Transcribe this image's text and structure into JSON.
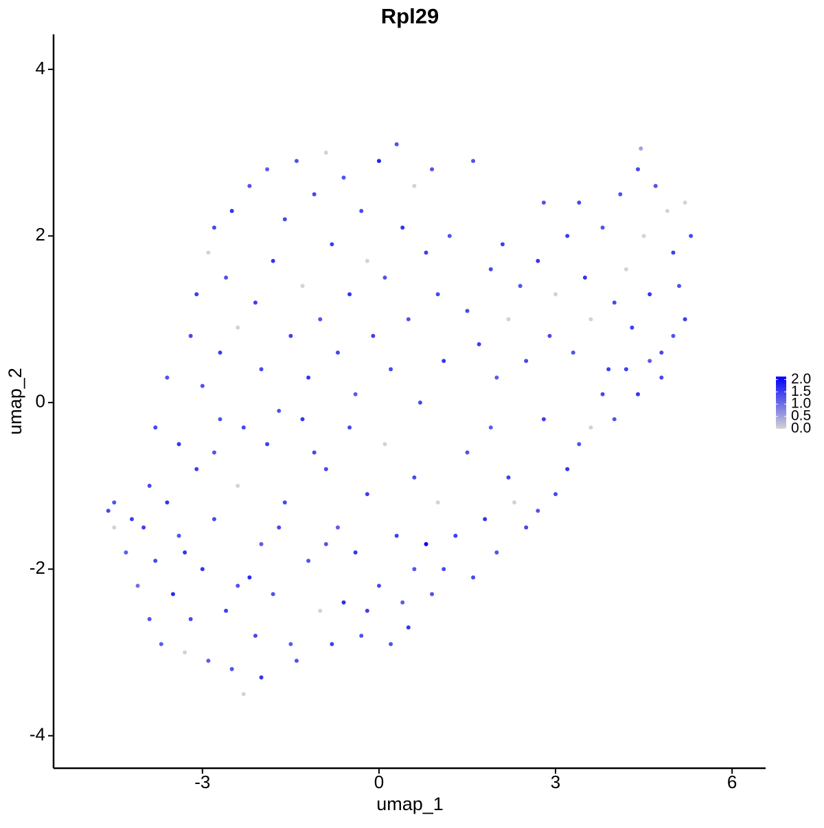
{
  "chart_data": {
    "type": "scatter",
    "title": "Rpl29",
    "xlabel": "umap_1",
    "ylabel": "umap_2",
    "x": [
      -4.6,
      -4.5,
      -4.5,
      -4.3,
      -4.1,
      -4.0,
      -3.9,
      -3.8,
      -3.7,
      -3.6,
      -3.5,
      -3.4,
      -3.3,
      -3.2,
      -3.1,
      -3.0,
      -2.9,
      -2.8,
      -2.7,
      -2.6,
      -2.5,
      -2.4,
      -2.3,
      -2.2,
      -2.1,
      -2.0,
      -2.0,
      -1.9,
      -1.8,
      -1.6,
      -1.5,
      -1.4,
      -1.3,
      -1.2,
      -1.0,
      -0.9,
      -0.8,
      -0.7,
      -0.6,
      -0.5,
      -0.4,
      -0.3,
      -0.2,
      0.0,
      0.1,
      0.2,
      0.3,
      0.4,
      0.5,
      0.6,
      0.8,
      0.9,
      1.0,
      1.1,
      1.3,
      1.5,
      1.6,
      1.8,
      1.9,
      2.0,
      2.2,
      2.3,
      2.5,
      2.7,
      2.8,
      3.0,
      3.2,
      3.4,
      3.6,
      3.8,
      4.0,
      4.2,
      4.4,
      4.6,
      4.8,
      5.0,
      5.2,
      -3.8,
      -3.6,
      -3.4,
      -3.2,
      -3.1,
      -3.0,
      -2.9,
      -2.8,
      -2.7,
      -2.6,
      -2.5,
      -2.4,
      -2.3,
      -2.2,
      -2.1,
      -2.0,
      -1.9,
      -1.8,
      -1.7,
      -1.6,
      -1.5,
      -1.4,
      -1.3,
      -1.2,
      -1.1,
      -1.0,
      -0.9,
      -0.8,
      -0.7,
      -0.6,
      -0.5,
      -0.4,
      -0.3,
      -0.2,
      -0.1,
      0.0,
      0.1,
      0.2,
      0.3,
      0.4,
      0.5,
      0.6,
      0.7,
      0.8,
      0.9,
      1.0,
      1.1,
      1.2,
      1.5,
      1.6,
      1.7,
      1.9,
      2.0,
      2.1,
      2.2,
      2.4,
      2.5,
      2.7,
      2.8,
      2.9,
      3.0,
      3.2,
      3.3,
      3.4,
      3.5,
      3.6,
      3.8,
      3.9,
      4.0,
      4.1,
      4.2,
      4.3,
      4.4,
      4.5,
      4.6,
      4.7,
      4.8,
      4.9,
      5.0,
      5.1,
      5.2,
      5.3,
      4.45,
      -3.9,
      -4.2,
      -3.3,
      -2.4,
      -1.7,
      -0.9,
      -0.2,
      0.6,
      -1.1,
      -2.8
    ],
    "values": [
      -1.3,
      -1.2,
      -1.5,
      -1.8,
      -2.2,
      -1.5,
      -2.6,
      -1.9,
      -2.9,
      -1.2,
      -2.3,
      -1.6,
      -3.0,
      -2.6,
      -0.8,
      -2.0,
      -3.1,
      -1.4,
      -0.2,
      -2.5,
      -3.2,
      -1.0,
      -3.5,
      -2.1,
      -2.8,
      -1.7,
      -3.3,
      -0.5,
      -2.3,
      -1.2,
      -2.9,
      -3.1,
      -0.2,
      -1.9,
      -2.5,
      -0.8,
      -2.9,
      -1.5,
      -2.4,
      -0.3,
      -1.8,
      -2.8,
      -1.1,
      -2.2,
      -0.5,
      -2.9,
      -1.6,
      -2.4,
      -2.7,
      -0.9,
      -1.7,
      -2.3,
      -1.2,
      -2.0,
      -1.6,
      -0.6,
      -2.1,
      -1.4,
      -0.3,
      -1.8,
      -0.9,
      -1.2,
      -1.5,
      -1.3,
      -0.2,
      -1.1,
      -0.8,
      -0.5,
      -0.3,
      0.1,
      -0.2,
      0.4,
      0.1,
      0.5,
      0.3,
      0.8,
      1.0,
      -0.3,
      0.3,
      -0.5,
      0.8,
      1.3,
      0.2,
      1.8,
      2.1,
      0.6,
      1.5,
      2.3,
      0.9,
      -0.3,
      2.6,
      1.2,
      0.4,
      2.8,
      1.7,
      -0.1,
      2.2,
      0.8,
      2.9,
      1.4,
      0.3,
      2.5,
      1.0,
      3.0,
      1.9,
      0.6,
      2.7,
      1.3,
      0.1,
      2.3,
      1.7,
      0.8,
      2.9,
      1.5,
      0.4,
      3.1,
      2.1,
      1.0,
      2.6,
      0.0,
      1.8,
      2.8,
      1.3,
      0.5,
      2.0,
      1.1,
      2.9,
      0.7,
      1.6,
      0.3,
      1.9,
      1.0,
      1.4,
      0.5,
      1.7,
      2.4,
      0.8,
      1.3,
      2.0,
      0.6,
      2.4,
      1.5,
      1.0,
      2.1,
      0.4,
      1.2,
      2.5,
      1.6,
      0.9,
      2.8,
      2.0,
      1.3,
      2.6,
      0.6,
      2.3,
      1.8,
      1.4,
      2.4,
      2.0,
      3.05,
      -1.0,
      -1.4,
      -1.8,
      -2.2,
      -1.5,
      -1.7,
      -2.5,
      -2.0,
      -0.6,
      -0.6
    ],
    "color_values": [
      1.4,
      1.3,
      0,
      1.2,
      1.0,
      1.5,
      1.3,
      1.4,
      1.2,
      1.6,
      1.7,
      1.3,
      0,
      1.4,
      1.5,
      1.6,
      1.2,
      1.4,
      1.3,
      1.5,
      1.3,
      0,
      0,
      1.7,
      1.4,
      1.2,
      1.6,
      1.5,
      1.3,
      1.4,
      1.2,
      1.3,
      1.6,
      1.3,
      0,
      1.4,
      1.5,
      1.2,
      1.7,
      1.4,
      1.6,
      1.3,
      1.5,
      1.4,
      0,
      1.3,
      1.5,
      1.2,
      1.6,
      1.4,
      2.1,
      1.3,
      0,
      1.4,
      1.5,
      1.3,
      1.4,
      1.6,
      1.2,
      1.3,
      1.5,
      0,
      1.4,
      1.3,
      1.5,
      1.4,
      1.6,
      1.3,
      0,
      1.4,
      1.3,
      1.5,
      1.6,
      1.2,
      1.4,
      1.3,
      1.5,
      1.4,
      1.3,
      1.6,
      1.4,
      1.5,
      1.3,
      0,
      1.4,
      1.5,
      1.3,
      1.6,
      0,
      1.4,
      1.3,
      1.5,
      1.4,
      1.2,
      1.6,
      1.3,
      1.4,
      1.5,
      1.3,
      0,
      1.6,
      1.4,
      1.3,
      0,
      1.5,
      1.4,
      1.3,
      1.6,
      1.2,
      1.4,
      0,
      1.5,
      1.8,
      1.3,
      1.4,
      1.3,
      1.6,
      1.3,
      0,
      1.4,
      1.5,
      1.3,
      1.4,
      1.6,
      1.3,
      1.4,
      1.3,
      1.5,
      1.4,
      1.2,
      1.5,
      0,
      1.3,
      1.4,
      1.6,
      1.3,
      1.4,
      0,
      1.5,
      1.3,
      1.4,
      1.6,
      0,
      1.3,
      1.5,
      1.4,
      1.3,
      0,
      1.5,
      1.4,
      0,
      1.6,
      1.3,
      1.4,
      0,
      1.5,
      1.3,
      0,
      1.4,
      0.5,
      1.4,
      1.5,
      1.6,
      1.3,
      1.4,
      1.3,
      1.5,
      1.3,
      1.4,
      1.3
    ],
    "xlim": [
      -5.53,
      6.57
    ],
    "ylim": [
      -4.39,
      4.42
    ],
    "xticks": [
      -3,
      0,
      3,
      6
    ],
    "yticks": [
      -4,
      -2,
      0,
      2,
      4
    ],
    "color_low": "#d3d3d3",
    "color_high": "#0000ff",
    "color_lim": [
      0,
      2.12
    ],
    "color_ticks": [
      {
        "value": 0,
        "label": "0.0"
      },
      {
        "value": 0.5,
        "label": "0.5"
      },
      {
        "value": 1,
        "label": "1.0"
      },
      {
        "value": 1.5,
        "label": "1.5"
      },
      {
        "value": 2,
        "label": "2.0"
      }
    ]
  }
}
